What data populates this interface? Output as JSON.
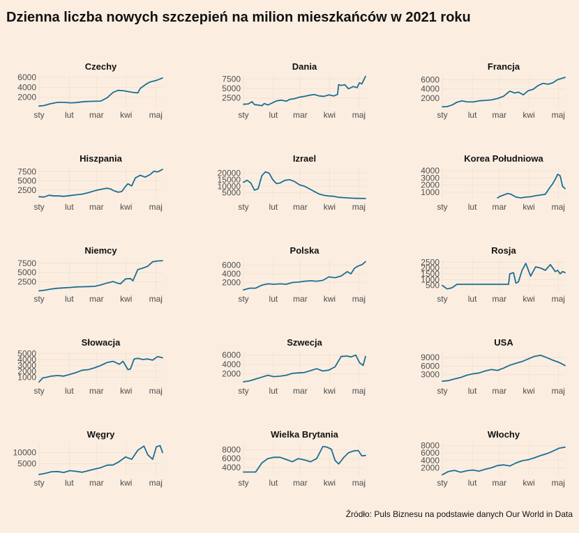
{
  "title": "Dzienna liczba nowych szczepień na milion mieszkańców w 2021 roku",
  "caption": "Źródło: Puls Biznesu na podstawie danych Our World in Data",
  "colors": {
    "background": "#fbeee1",
    "line": "#1a6e94"
  },
  "chart_data": [
    {
      "type": "line",
      "title": "Czechy",
      "xticks": [
        "sty",
        "lut",
        "mar",
        "kwi",
        "maj"
      ],
      "yticks": [
        2000,
        4000,
        6000
      ],
      "ylim": [
        0,
        6300
      ],
      "x": [
        0,
        0.04,
        0.09,
        0.15,
        0.2,
        0.26,
        0.3,
        0.37,
        0.43,
        0.5,
        0.55,
        0.6,
        0.64,
        0.69,
        0.71,
        0.76,
        0.8,
        0.82,
        0.87,
        0.9,
        0.95,
        1.0
      ],
      "values": [
        250,
        350,
        700,
        1000,
        1000,
        900,
        950,
        1150,
        1200,
        1250,
        1900,
        3000,
        3400,
        3300,
        3200,
        3000,
        2900,
        3800,
        4700,
        5100,
        5400,
        5900
      ]
    },
    {
      "type": "line",
      "title": "Dania",
      "xticks": [
        "sty",
        "lut",
        "mar",
        "kwi",
        "maj"
      ],
      "yticks": [
        2500,
        5000,
        7500
      ],
      "ylim": [
        0,
        8300
      ],
      "x": [
        0,
        0.04,
        0.07,
        0.09,
        0.12,
        0.15,
        0.17,
        0.2,
        0.22,
        0.27,
        0.31,
        0.35,
        0.38,
        0.42,
        0.46,
        0.5,
        0.54,
        0.58,
        0.62,
        0.66,
        0.7,
        0.74,
        0.77,
        0.78,
        0.8,
        0.83,
        0.86,
        0.9,
        0.93,
        0.95,
        0.97,
        1.0
      ],
      "values": [
        800,
        900,
        1500,
        700,
        600,
        400,
        1000,
        600,
        900,
        1700,
        1900,
        1600,
        2100,
        2300,
        2700,
        2900,
        3200,
        3400,
        3000,
        2900,
        3300,
        3000,
        3400,
        6000,
        5800,
        6000,
        4900,
        5500,
        5200,
        6500,
        6200,
        8200
      ]
    },
    {
      "type": "line",
      "title": "Francja",
      "xticks": [
        "sty",
        "lut",
        "mar",
        "kwi",
        "maj"
      ],
      "yticks": [
        2000,
        4000,
        6000
      ],
      "ylim": [
        0,
        6800
      ],
      "x": [
        0,
        0.04,
        0.08,
        0.12,
        0.16,
        0.2,
        0.25,
        0.3,
        0.35,
        0.4,
        0.45,
        0.5,
        0.55,
        0.59,
        0.62,
        0.66,
        0.7,
        0.74,
        0.78,
        0.82,
        0.86,
        0.9,
        0.94,
        1.0
      ],
      "values": [
        100,
        150,
        500,
        1100,
        1400,
        1200,
        1150,
        1400,
        1500,
        1600,
        1900,
        2400,
        3500,
        3100,
        3300,
        2700,
        3600,
        3900,
        4700,
        5200,
        5000,
        5300,
        6000,
        6500
      ]
    },
    {
      "type": "line",
      "title": "Hiszpania",
      "xticks": [
        "sty",
        "lut",
        "mar",
        "kwi",
        "maj"
      ],
      "yticks": [
        2500,
        5000,
        7500
      ],
      "ylim": [
        0,
        8500
      ],
      "x": [
        0,
        0.04,
        0.08,
        0.12,
        0.16,
        0.2,
        0.25,
        0.3,
        0.35,
        0.4,
        0.45,
        0.5,
        0.55,
        0.58,
        0.6,
        0.64,
        0.67,
        0.7,
        0.72,
        0.75,
        0.78,
        0.82,
        0.86,
        0.9,
        0.93,
        0.96,
        1.0
      ],
      "values": [
        700,
        600,
        1100,
        900,
        900,
        800,
        1000,
        1200,
        1400,
        1800,
        2300,
        2700,
        3000,
        2800,
        2400,
        1900,
        2100,
        3500,
        4200,
        3600,
        5800,
        6500,
        6000,
        6700,
        7600,
        7400,
        8100
      ]
    },
    {
      "type": "line",
      "title": "Izrael",
      "xticks": [
        "sty",
        "lut",
        "mar",
        "kwi",
        "maj"
      ],
      "yticks": [
        5000,
        10000,
        15000,
        20000
      ],
      "ylim": [
        0,
        24000
      ],
      "x": [
        0,
        0.03,
        0.06,
        0.09,
        0.12,
        0.15,
        0.18,
        0.21,
        0.24,
        0.27,
        0.3,
        0.34,
        0.38,
        0.42,
        0.46,
        0.5,
        0.54,
        0.58,
        0.62,
        0.66,
        0.7,
        0.74,
        0.78,
        0.82,
        0.86,
        0.9,
        0.94,
        1.0
      ],
      "values": [
        13000,
        14500,
        12500,
        7000,
        8000,
        18000,
        21000,
        20000,
        15000,
        12000,
        12500,
        14500,
        15000,
        13500,
        11000,
        10000,
        8000,
        6000,
        4000,
        3000,
        2500,
        2300,
        1500,
        1300,
        1000,
        800,
        700,
        600
      ]
    },
    {
      "type": "line",
      "title": "Korea Południowa",
      "xticks": [
        "sty",
        "lut",
        "mar",
        "kwi",
        "maj"
      ],
      "yticks": [
        1000,
        2000,
        3000,
        4000
      ],
      "ylim": [
        0,
        4400
      ],
      "x": [
        0.45,
        0.47,
        0.5,
        0.53,
        0.56,
        0.6,
        0.64,
        0.68,
        0.72,
        0.76,
        0.8,
        0.84,
        0.87,
        0.9,
        0.92,
        0.94,
        0.96,
        0.98,
        1.0
      ],
      "values": [
        200,
        400,
        600,
        800,
        700,
        300,
        200,
        300,
        350,
        500,
        600,
        700,
        1500,
        2200,
        2800,
        3500,
        3300,
        1800,
        1500
      ]
    },
    {
      "type": "line",
      "title": "Niemcy",
      "xticks": [
        "sty",
        "lut",
        "mar",
        "kwi",
        "maj"
      ],
      "yticks": [
        2500,
        5000,
        7500
      ],
      "ylim": [
        0,
        8400
      ],
      "x": [
        0,
        0.05,
        0.1,
        0.15,
        0.2,
        0.25,
        0.3,
        0.35,
        0.4,
        0.45,
        0.5,
        0.55,
        0.6,
        0.63,
        0.66,
        0.7,
        0.74,
        0.76,
        0.8,
        0.84,
        0.88,
        0.92,
        0.96,
        1.0
      ],
      "values": [
        100,
        300,
        600,
        800,
        900,
        1000,
        1150,
        1200,
        1250,
        1300,
        1700,
        2200,
        2600,
        2200,
        2000,
        3300,
        3400,
        2800,
        5800,
        6200,
        6700,
        7900,
        8100,
        8200
      ]
    },
    {
      "type": "line",
      "title": "Polska",
      "xticks": [
        "sty",
        "lut",
        "mar",
        "kwi",
        "maj"
      ],
      "yticks": [
        2000,
        4000,
        6000
      ],
      "ylim": [
        0,
        7200
      ],
      "x": [
        0,
        0.05,
        0.1,
        0.15,
        0.2,
        0.25,
        0.3,
        0.35,
        0.4,
        0.45,
        0.5,
        0.55,
        0.6,
        0.65,
        0.7,
        0.75,
        0.8,
        0.85,
        0.88,
        0.91,
        0.94,
        0.97,
        1.0
      ],
      "values": [
        300,
        700,
        700,
        1400,
        1700,
        1600,
        1700,
        1600,
        2000,
        2100,
        2300,
        2400,
        2300,
        2500,
        3300,
        3100,
        3500,
        4500,
        4000,
        5300,
        5800,
        6100,
        6800
      ]
    },
    {
      "type": "line",
      "title": "Rosja",
      "xticks": [
        "sty",
        "lut",
        "mar",
        "kwi",
        "maj"
      ],
      "yticks": [
        500,
        1000,
        1500,
        2000,
        2500
      ],
      "ylim": [
        0,
        2700
      ],
      "x": [
        0,
        0.04,
        0.08,
        0.12,
        0.16,
        0.2,
        0.25,
        0.3,
        0.35,
        0.4,
        0.45,
        0.5,
        0.54,
        0.55,
        0.58,
        0.6,
        0.62,
        0.65,
        0.68,
        0.72,
        0.76,
        0.8,
        0.84,
        0.88,
        0.9,
        0.92,
        0.94,
        0.96,
        0.98,
        1.0
      ],
      "values": [
        500,
        200,
        300,
        600,
        600,
        600,
        600,
        600,
        600,
        600,
        600,
        600,
        600,
        1500,
        1600,
        700,
        800,
        1800,
        2400,
        1300,
        2100,
        2000,
        1800,
        2300,
        2000,
        1700,
        1800,
        1500,
        1700,
        1600
      ]
    },
    {
      "type": "line",
      "title": "Słowacja",
      "xticks": [
        "sty",
        "lut",
        "mar",
        "kwi",
        "maj"
      ],
      "yticks": [
        1000,
        2000,
        3000,
        4000,
        5000
      ],
      "ylim": [
        0,
        5300
      ],
      "x": [
        0,
        0.03,
        0.06,
        0.1,
        0.15,
        0.2,
        0.25,
        0.3,
        0.35,
        0.4,
        0.45,
        0.5,
        0.55,
        0.6,
        0.65,
        0.68,
        0.72,
        0.74,
        0.77,
        0.8,
        0.84,
        0.88,
        0.92,
        0.96,
        1.0
      ],
      "values": [
        200,
        900,
        1000,
        1200,
        1300,
        1200,
        1500,
        1800,
        2200,
        2300,
        2600,
        3000,
        3500,
        3700,
        3200,
        3700,
        2300,
        2400,
        4100,
        4200,
        4000,
        4100,
        3900,
        4500,
        4300
      ]
    },
    {
      "type": "line",
      "title": "Szwecja",
      "xticks": [
        "sty",
        "lut",
        "mar",
        "kwi",
        "maj"
      ],
      "yticks": [
        2000,
        4000,
        6000
      ],
      "ylim": [
        0,
        6700
      ],
      "x": [
        0,
        0.05,
        0.1,
        0.15,
        0.2,
        0.25,
        0.3,
        0.35,
        0.4,
        0.45,
        0.5,
        0.55,
        0.6,
        0.65,
        0.7,
        0.75,
        0.8,
        0.85,
        0.88,
        0.92,
        0.95,
        0.98,
        1.0
      ],
      "values": [
        300,
        500,
        900,
        1300,
        1700,
        1400,
        1500,
        1700,
        2100,
        2200,
        2300,
        2700,
        3100,
        2600,
        2800,
        3500,
        5700,
        5800,
        5600,
        6000,
        4400,
        3800,
        5700
      ]
    },
    {
      "type": "line",
      "title": "USA",
      "xticks": [
        "sty",
        "lut",
        "mar",
        "kwi",
        "maj"
      ],
      "yticks": [
        3000,
        6000,
        9000
      ],
      "ylim": [
        0,
        11000
      ],
      "x": [
        0,
        0.05,
        0.1,
        0.15,
        0.2,
        0.25,
        0.3,
        0.35,
        0.4,
        0.45,
        0.5,
        0.55,
        0.6,
        0.65,
        0.7,
        0.75,
        0.8,
        0.85,
        0.9,
        0.95,
        1.0
      ],
      "values": [
        700,
        900,
        1500,
        2000,
        2800,
        3300,
        3600,
        4300,
        4800,
        4500,
        5300,
        6300,
        7000,
        7600,
        8500,
        9400,
        9800,
        9000,
        8100,
        7300,
        6200
      ]
    },
    {
      "type": "line",
      "title": "Węgry",
      "xticks": [
        "sty",
        "lut",
        "mar",
        "kwi",
        "maj"
      ],
      "yticks": [
        5000,
        10000
      ],
      "ylim": [
        0,
        13800
      ],
      "x": [
        0,
        0.05,
        0.1,
        0.15,
        0.2,
        0.25,
        0.3,
        0.35,
        0.4,
        0.45,
        0.5,
        0.55,
        0.6,
        0.65,
        0.7,
        0.75,
        0.8,
        0.85,
        0.88,
        0.92,
        0.95,
        0.98,
        1.0
      ],
      "values": [
        300,
        800,
        1500,
        1600,
        1200,
        2000,
        1700,
        1300,
        2000,
        2700,
        3300,
        4400,
        4500,
        6000,
        8000,
        7000,
        11000,
        12800,
        9000,
        7000,
        12500,
        13000,
        10000
      ]
    },
    {
      "type": "line",
      "title": "Wielka Brytania",
      "xticks": [
        "sty",
        "lut",
        "mar",
        "kwi",
        "maj"
      ],
      "yticks": [
        4000,
        6000,
        8000
      ],
      "ylim": [
        2300,
        9300
      ],
      "x": [
        0,
        0.05,
        0.1,
        0.15,
        0.2,
        0.25,
        0.3,
        0.35,
        0.4,
        0.45,
        0.5,
        0.55,
        0.6,
        0.65,
        0.68,
        0.72,
        0.75,
        0.78,
        0.82,
        0.86,
        0.9,
        0.94,
        0.97,
        1.0
      ],
      "values": [
        3000,
        3000,
        3000,
        5000,
        6000,
        6300,
        6300,
        5800,
        5300,
        6000,
        5700,
        5300,
        6000,
        8700,
        8600,
        8100,
        5600,
        4800,
        6200,
        7300,
        7700,
        7800,
        6600,
        6700
      ]
    },
    {
      "type": "line",
      "title": "Włochy",
      "xticks": [
        "sty",
        "lut",
        "mar",
        "kwi",
        "maj"
      ],
      "yticks": [
        2000,
        4000,
        6000,
        8000
      ],
      "ylim": [
        0,
        8500
      ],
      "x": [
        0,
        0.05,
        0.1,
        0.15,
        0.2,
        0.25,
        0.3,
        0.35,
        0.4,
        0.45,
        0.5,
        0.55,
        0.6,
        0.65,
        0.7,
        0.75,
        0.8,
        0.85,
        0.9,
        0.95,
        1.0
      ],
      "values": [
        100,
        1000,
        1300,
        800,
        1200,
        1400,
        1100,
        1600,
        2000,
        2600,
        2800,
        2500,
        3300,
        3900,
        4200,
        4700,
        5300,
        5800,
        6500,
        7300,
        7600
      ]
    }
  ]
}
